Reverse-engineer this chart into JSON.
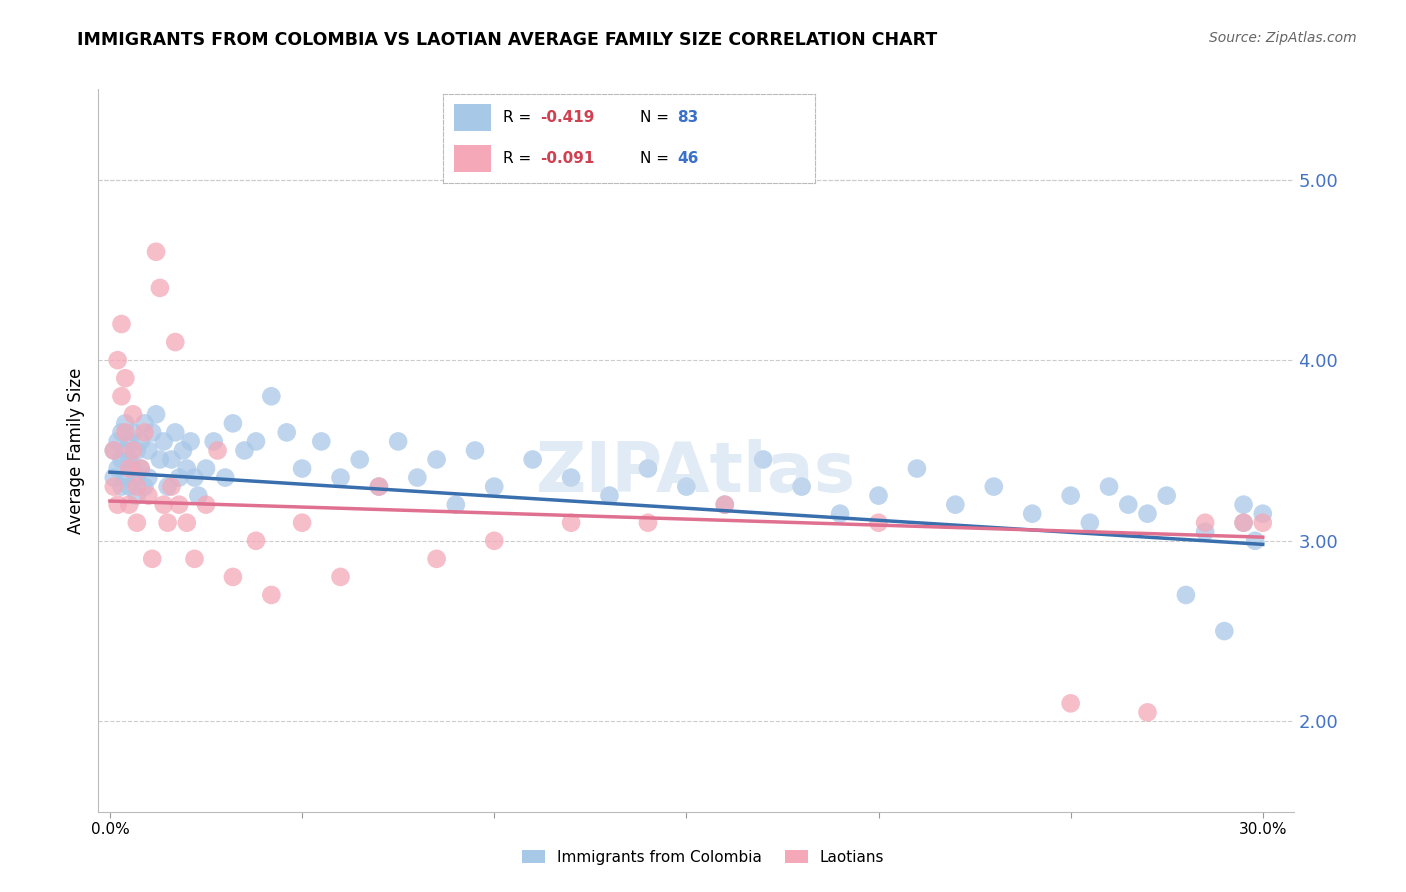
{
  "title": "IMMIGRANTS FROM COLOMBIA VS LAOTIAN AVERAGE FAMILY SIZE CORRELATION CHART",
  "source": "Source: ZipAtlas.com",
  "ylabel": "Average Family Size",
  "xlim": [
    -0.003,
    0.308
  ],
  "ylim": [
    1.5,
    5.5
  ],
  "yticks": [
    2.0,
    3.0,
    4.0,
    5.0
  ],
  "xtick_positions": [
    0.0,
    0.05,
    0.1,
    0.15,
    0.2,
    0.25,
    0.3
  ],
  "xtick_labels": [
    "0.0%",
    "",
    "",
    "",
    "",
    "",
    "30.0%"
  ],
  "color_colombia": "#a8c8e8",
  "color_laotian": "#f4a8b8",
  "line_color_colombia": "#3a6fad",
  "line_color_laotian": "#e07090",
  "watermark": "ZIPAtlas",
  "colombia_x": [
    0.001,
    0.001,
    0.002,
    0.002,
    0.003,
    0.003,
    0.003,
    0.004,
    0.004,
    0.004,
    0.005,
    0.005,
    0.005,
    0.006,
    0.006,
    0.007,
    0.007,
    0.007,
    0.008,
    0.008,
    0.009,
    0.009,
    0.01,
    0.01,
    0.011,
    0.012,
    0.013,
    0.014,
    0.015,
    0.016,
    0.017,
    0.018,
    0.019,
    0.02,
    0.021,
    0.022,
    0.023,
    0.025,
    0.027,
    0.03,
    0.032,
    0.035,
    0.038,
    0.042,
    0.046,
    0.05,
    0.055,
    0.06,
    0.065,
    0.07,
    0.075,
    0.08,
    0.085,
    0.09,
    0.095,
    0.1,
    0.11,
    0.12,
    0.13,
    0.14,
    0.15,
    0.16,
    0.17,
    0.18,
    0.19,
    0.2,
    0.21,
    0.22,
    0.23,
    0.24,
    0.25,
    0.255,
    0.26,
    0.265,
    0.27,
    0.275,
    0.28,
    0.285,
    0.29,
    0.295,
    0.295,
    0.298,
    0.3
  ],
  "colombia_y": [
    3.35,
    3.5,
    3.4,
    3.55,
    3.3,
    3.45,
    3.6,
    3.35,
    3.5,
    3.65,
    3.3,
    3.45,
    3.55,
    3.4,
    3.6,
    3.35,
    3.5,
    3.25,
    3.55,
    3.4,
    3.65,
    3.3,
    3.5,
    3.35,
    3.6,
    3.7,
    3.45,
    3.55,
    3.3,
    3.45,
    3.6,
    3.35,
    3.5,
    3.4,
    3.55,
    3.35,
    3.25,
    3.4,
    3.55,
    3.35,
    3.65,
    3.5,
    3.55,
    3.8,
    3.6,
    3.4,
    3.55,
    3.35,
    3.45,
    3.3,
    3.55,
    3.35,
    3.45,
    3.2,
    3.5,
    3.3,
    3.45,
    3.35,
    3.25,
    3.4,
    3.3,
    3.2,
    3.45,
    3.3,
    3.15,
    3.25,
    3.4,
    3.2,
    3.3,
    3.15,
    3.25,
    3.1,
    3.3,
    3.2,
    3.15,
    3.25,
    2.7,
    3.05,
    2.5,
    3.1,
    3.2,
    3.0,
    3.15
  ],
  "laotian_x": [
    0.001,
    0.001,
    0.002,
    0.002,
    0.003,
    0.003,
    0.004,
    0.004,
    0.005,
    0.005,
    0.006,
    0.006,
    0.007,
    0.007,
    0.008,
    0.009,
    0.01,
    0.011,
    0.012,
    0.013,
    0.014,
    0.015,
    0.016,
    0.017,
    0.018,
    0.02,
    0.022,
    0.025,
    0.028,
    0.032,
    0.038,
    0.042,
    0.05,
    0.06,
    0.07,
    0.085,
    0.1,
    0.12,
    0.14,
    0.16,
    0.2,
    0.25,
    0.27,
    0.285,
    0.295,
    0.3
  ],
  "laotian_y": [
    3.3,
    3.5,
    3.2,
    4.0,
    3.8,
    4.2,
    3.9,
    3.6,
    3.4,
    3.2,
    3.5,
    3.7,
    3.3,
    3.1,
    3.4,
    3.6,
    3.25,
    2.9,
    4.6,
    4.4,
    3.2,
    3.1,
    3.3,
    4.1,
    3.2,
    3.1,
    2.9,
    3.2,
    3.5,
    2.8,
    3.0,
    2.7,
    3.1,
    2.8,
    3.3,
    2.9,
    3.0,
    3.1,
    3.1,
    3.2,
    3.1,
    2.1,
    2.05,
    3.1,
    3.1,
    3.1
  ],
  "trend_colombia": [
    3.38,
    2.98
  ],
  "trend_laotian": [
    3.22,
    3.02
  ]
}
